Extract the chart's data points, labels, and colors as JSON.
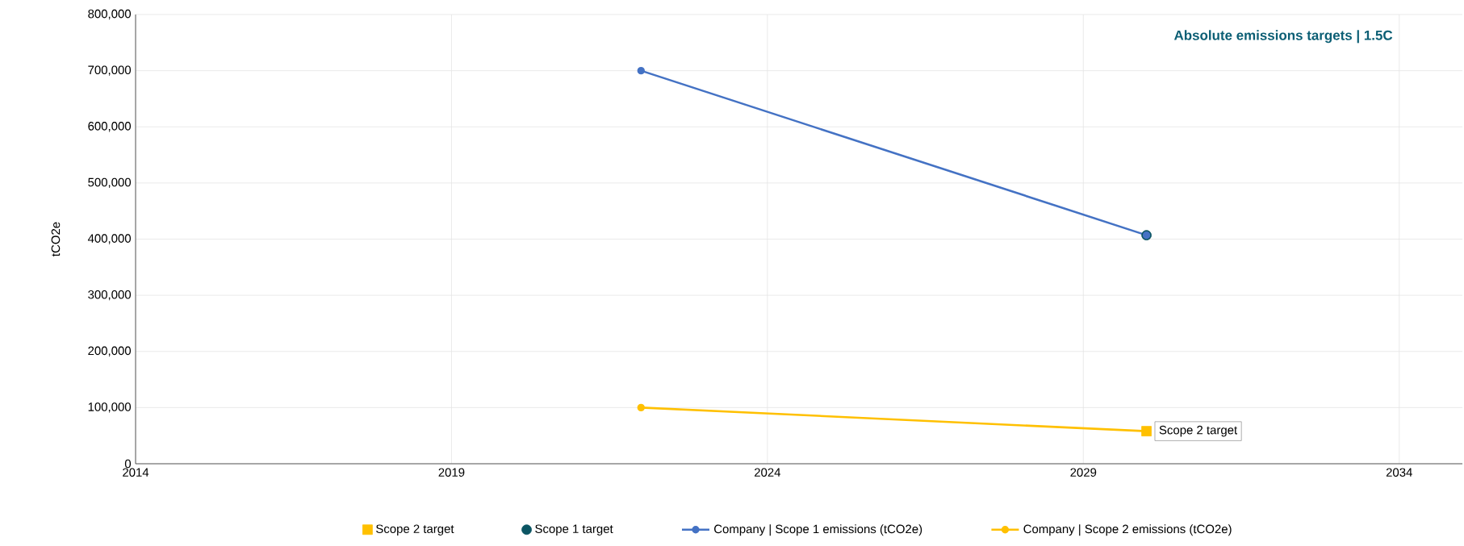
{
  "chart_data": {
    "type": "line",
    "title": "Absolute emissions targets | 1.5C",
    "ylabel": "tCO2e",
    "xlim": [
      2014,
      2035
    ],
    "xticks": [
      2014,
      2019,
      2024,
      2029,
      2034
    ],
    "ylim": [
      0,
      800000
    ],
    "yticks": [
      0,
      {
        "value": 100000,
        "label": "100,000"
      },
      {
        "value": 200000,
        "label": "200,000"
      },
      {
        "value": 300000,
        "label": "300,000"
      },
      {
        "value": 400000,
        "label": "400,000"
      },
      {
        "value": 500000,
        "label": "500,000"
      },
      {
        "value": 600000,
        "label": "600,000"
      },
      {
        "value": 700000,
        "label": "700,000"
      },
      {
        "value": 800000,
        "label": "800,000"
      }
    ],
    "grid": true,
    "legend": "bottom",
    "x": [
      2022,
      2030
    ],
    "series": [
      {
        "name": "Scope 2 target",
        "type": "scatter",
        "marker": "square",
        "color": "#ffc000",
        "values": [
          null,
          58000
        ]
      },
      {
        "name": "Scope 1 target",
        "type": "scatter",
        "marker": "circle",
        "color": "#0b5563",
        "values": [
          null,
          407000
        ]
      },
      {
        "name": "Company | Scope 1 emissions (tCO2e)",
        "marker": "circle",
        "color": "#4472c4",
        "values": [
          700000,
          407000
        ]
      },
      {
        "name": "Company | Scope 2 emissions (tCO2e)",
        "marker": "circle",
        "color": "#ffc000",
        "values": [
          100000,
          58000
        ]
      }
    ],
    "annotations": [
      {
        "text": "Scope 2 target",
        "x": 2030,
        "y": 58000
      }
    ]
  }
}
